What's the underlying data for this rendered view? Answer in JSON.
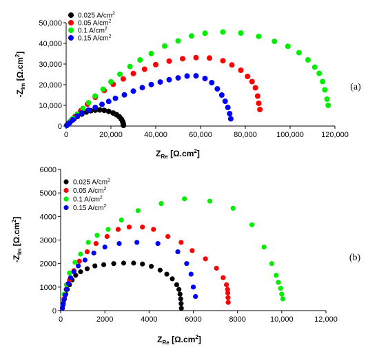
{
  "chart_data": [
    {
      "type": "scatter",
      "panel_label": "(a)",
      "xlabel": {
        "main": "Z",
        "sub": "Re",
        "unit": " [Ω.cm",
        "sup": "2",
        "close": "]"
      },
      "ylabel": {
        "main": "-Z",
        "sub": "Im",
        "unit": " [Ω.cm",
        "sup": "2",
        "close": "]"
      },
      "xlim": [
        0,
        120000
      ],
      "ylim": [
        0,
        50000
      ],
      "xticks": [
        0,
        20000,
        40000,
        60000,
        80000,
        100000,
        120000
      ],
      "xtick_labels": [
        "0",
        "20,000",
        "40,000",
        "60,000",
        "80,000",
        "100,000",
        "120,000"
      ],
      "yticks": [
        0,
        10000,
        20000,
        30000,
        40000,
        50000
      ],
      "ytick_labels": [
        "0",
        "10,000",
        "20,000",
        "30,000",
        "40,000",
        "50,000"
      ],
      "legend_position": "top-left",
      "series": [
        {
          "name": "0.025 A/cm",
          "name_sup": "2",
          "color": "#000000",
          "points": [
            [
              300,
              300
            ],
            [
              1000,
              1200
            ],
            [
              2000,
              2200
            ],
            [
              3500,
              3500
            ],
            [
              5000,
              4600
            ],
            [
              7000,
              5800
            ],
            [
              9000,
              6800
            ],
            [
              11000,
              7400
            ],
            [
              13000,
              7700
            ],
            [
              15000,
              7800
            ],
            [
              17000,
              7600
            ],
            [
              19000,
              7100
            ],
            [
              21000,
              6300
            ],
            [
              22500,
              5500
            ],
            [
              23700,
              4500
            ],
            [
              24600,
              3400
            ],
            [
              25200,
              2200
            ],
            [
              25500,
              1200
            ],
            [
              25600,
              300
            ]
          ]
        },
        {
          "name": "0.05 A/cm",
          "name_sup": "2",
          "color": "#ff0000",
          "points": [
            [
              300,
              400
            ],
            [
              2000,
              2400
            ],
            [
              4000,
              4700
            ],
            [
              6500,
              7400
            ],
            [
              9500,
              10600
            ],
            [
              13000,
              13900
            ],
            [
              17000,
              17200
            ],
            [
              21000,
              20200
            ],
            [
              25500,
              22800
            ],
            [
              30000,
              25400
            ],
            [
              35000,
              27500
            ],
            [
              40000,
              29700
            ],
            [
              46000,
              31400
            ],
            [
              52000,
              32600
            ],
            [
              58000,
              33100
            ],
            [
              64000,
              32900
            ],
            [
              70000,
              31600
            ],
            [
              74000,
              29600
            ],
            [
              78000,
              27000
            ],
            [
              81000,
              24000
            ],
            [
              83000,
              21500
            ],
            [
              84500,
              18500
            ],
            [
              85500,
              14500
            ],
            [
              86000,
              11000
            ],
            [
              86500,
              8000
            ]
          ]
        },
        {
          "name": "0.1 A/cm",
          "name_sup": "2",
          "color": "#00ee00",
          "points": [
            [
              300,
              300
            ],
            [
              1500,
              2000
            ],
            [
              3000,
              3700
            ],
            [
              5000,
              5800
            ],
            [
              7500,
              8500
            ],
            [
              10000,
              11300
            ],
            [
              13000,
              14500
            ],
            [
              16500,
              17800
            ],
            [
              20000,
              21400
            ],
            [
              24000,
              25100
            ],
            [
              28500,
              28800
            ],
            [
              33000,
              32000
            ],
            [
              38000,
              35100
            ],
            [
              44000,
              38700
            ],
            [
              50000,
              41200
            ],
            [
              56000,
              43600
            ],
            [
              62000,
              44900
            ],
            [
              70000,
              45500
            ],
            [
              78000,
              45000
            ],
            [
              86000,
              43400
            ],
            [
              93000,
              41000
            ],
            [
              99000,
              38600
            ],
            [
              104000,
              35500
            ],
            [
              108000,
              32000
            ],
            [
              111000,
              28500
            ],
            [
              113000,
              25500
            ],
            [
              114500,
              21500
            ],
            [
              115500,
              17500
            ],
            [
              116500,
              13000
            ],
            [
              117000,
              10000
            ]
          ]
        },
        {
          "name": "0.15 A/cm",
          "name_sup": "2",
          "color": "#0000ff",
          "points": [
            [
              300,
              300
            ],
            [
              1500,
              1500
            ],
            [
              3000,
              3000
            ],
            [
              5000,
              4800
            ],
            [
              7000,
              6300
            ],
            [
              10000,
              7700
            ],
            [
              13000,
              9000
            ],
            [
              16000,
              10500
            ],
            [
              19000,
              11900
            ],
            [
              22000,
              13400
            ],
            [
              26000,
              15100
            ],
            [
              30000,
              16900
            ],
            [
              34000,
              18600
            ],
            [
              38000,
              20100
            ],
            [
              42000,
              21300
            ],
            [
              46000,
              22400
            ],
            [
              50000,
              23300
            ],
            [
              54000,
              24200
            ],
            [
              58000,
              24300
            ],
            [
              62000,
              23000
            ],
            [
              65000,
              21000
            ],
            [
              67500,
              18000
            ],
            [
              69500,
              15000
            ],
            [
              71000,
              12000
            ],
            [
              72200,
              9000
            ],
            [
              73000,
              6000
            ],
            [
              73500,
              3500
            ]
          ]
        }
      ]
    },
    {
      "type": "scatter",
      "panel_label": "(b)",
      "xlabel": {
        "main": "Z",
        "sub": "Re",
        "unit": " [Ω.cm",
        "sup": "2",
        "close": "]"
      },
      "ylabel": {
        "main": "-Z",
        "sub": "Im",
        "unit": " [Ω.cm",
        "sup": "2",
        "close": "]"
      },
      "xlim": [
        0,
        12000
      ],
      "ylim": [
        0,
        6000
      ],
      "xticks": [
        0,
        2000,
        4000,
        6000,
        8000,
        10000,
        12000
      ],
      "xtick_labels": [
        "0",
        "2000",
        "4000",
        "6000",
        "8000",
        "10,000",
        "12,000"
      ],
      "yticks": [
        0,
        1000,
        2000,
        3000,
        4000,
        5000,
        6000
      ],
      "ytick_labels": [
        "0",
        "1000",
        "2000",
        "3000",
        "4000",
        "5000",
        "6000"
      ],
      "legend_position": "top-left",
      "series": [
        {
          "name": "0.025 A/cm",
          "name_sup": "2",
          "color": "#000000",
          "points": [
            [
              80,
              100
            ],
            [
              120,
              300
            ],
            [
              170,
              500
            ],
            [
              230,
              700
            ],
            [
              300,
              900
            ],
            [
              400,
              1100
            ],
            [
              520,
              1300
            ],
            [
              680,
              1500
            ],
            [
              900,
              1650
            ],
            [
              1200,
              1780
            ],
            [
              1550,
              1900
            ],
            [
              1950,
              1950
            ],
            [
              2400,
              2000
            ],
            [
              2850,
              2020
            ],
            [
              3300,
              2020
            ],
            [
              3700,
              1980
            ],
            [
              4100,
              1880
            ],
            [
              4500,
              1720
            ],
            [
              4800,
              1550
            ],
            [
              5050,
              1350
            ],
            [
              5250,
              1100
            ],
            [
              5350,
              900
            ],
            [
              5400,
              700
            ],
            [
              5430,
              500
            ],
            [
              5450,
              300
            ],
            [
              5460,
              100
            ]
          ]
        },
        {
          "name": "0.05 A/cm",
          "name_sup": "2",
          "color": "#ff0000",
          "points": [
            [
              80,
              150
            ],
            [
              150,
              500
            ],
            [
              250,
              900
            ],
            [
              400,
              1300
            ],
            [
              600,
              1700
            ],
            [
              850,
              2100
            ],
            [
              1200,
              2500
            ],
            [
              1600,
              2850
            ],
            [
              2100,
              3150
            ],
            [
              2600,
              3450
            ],
            [
              3100,
              3550
            ],
            [
              3700,
              3550
            ],
            [
              4200,
              3450
            ],
            [
              4850,
              3150
            ],
            [
              5450,
              2900
            ],
            [
              5950,
              2550
            ],
            [
              6550,
              2200
            ],
            [
              7050,
              1800
            ],
            [
              7350,
              1400
            ],
            [
              7500,
              1100
            ],
            [
              7550,
              900
            ],
            [
              7560,
              750
            ],
            [
              7570,
              550
            ],
            [
              7580,
              350
            ]
          ]
        },
        {
          "name": "0.1 A/cm",
          "name_sup": "2",
          "color": "#00ee00",
          "points": [
            [
              80,
              200
            ],
            [
              160,
              700
            ],
            [
              260,
              1100
            ],
            [
              400,
              1600
            ],
            [
              650,
              2050
            ],
            [
              900,
              2400
            ],
            [
              1250,
              2900
            ],
            [
              1650,
              3200
            ],
            [
              2150,
              3450
            ],
            [
              2750,
              3850
            ],
            [
              3500,
              4250
            ],
            [
              4550,
              4550
            ],
            [
              5600,
              4750
            ],
            [
              6750,
              4650
            ],
            [
              7800,
              4350
            ],
            [
              8650,
              3650
            ],
            [
              9200,
              2700
            ],
            [
              9550,
              2000
            ],
            [
              9750,
              1500
            ],
            [
              9850,
              1200
            ],
            [
              9950,
              950
            ],
            [
              10000,
              700
            ],
            [
              10050,
              500
            ]
          ]
        },
        {
          "name": "0.15 A/cm",
          "name_sup": "2",
          "color": "#0000ff",
          "points": [
            [
              80,
              100
            ],
            [
              110,
              250
            ],
            [
              150,
              450
            ],
            [
              200,
              650
            ],
            [
              260,
              900
            ],
            [
              350,
              1150
            ],
            [
              450,
              1400
            ],
            [
              600,
              1650
            ],
            [
              800,
              1900
            ],
            [
              1100,
              2150
            ],
            [
              1500,
              2450
            ],
            [
              2000,
              2700
            ],
            [
              2650,
              2850
            ],
            [
              3450,
              2900
            ],
            [
              4400,
              2850
            ],
            [
              5300,
              2500
            ],
            [
              5700,
              2000
            ],
            [
              5900,
              1550
            ],
            [
              6000,
              1000
            ],
            [
              6100,
              600
            ]
          ]
        }
      ]
    }
  ]
}
